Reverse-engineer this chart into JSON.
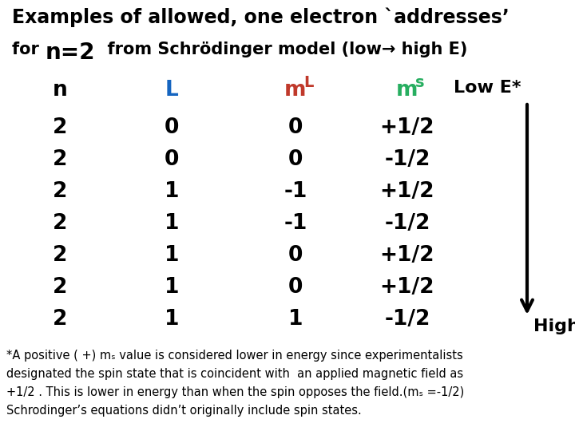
{
  "title_line1": "Examples of allowed, one electron `addresses’",
  "title_line2_a": "for ",
  "title_line2_b": "n=2",
  "title_line2_c": "  from Schrödinger model (low→ high E)",
  "bg_color": "#ffffff",
  "col_colors": [
    "black",
    "#1565C0",
    "#c0392b",
    "#27ae60"
  ],
  "rows": [
    [
      "2",
      "0",
      "0",
      "+1/2"
    ],
    [
      "2",
      "0",
      "0",
      "-1/2"
    ],
    [
      "2",
      "1",
      "-1",
      "+1/2"
    ],
    [
      "2",
      "1",
      "-1",
      "-1/2"
    ],
    [
      "2",
      "1",
      "0",
      "+1/2"
    ],
    [
      "2",
      "1",
      "0",
      "+1/2"
    ],
    [
      "2",
      "1",
      "1",
      "-1/2"
    ]
  ],
  "footnote_lines": [
    "*A positive ( +) mₛ value is considered lower in energy since experimentalists",
    "designated the spin state that is coincident with  an applied magnetic field as",
    "+1/2 . This is lower in energy than when the spin opposes the field.(mₛ =-1/2)",
    "Schrodinger’s equations didn’t originally include spin states."
  ],
  "low_e_label": "Low E*",
  "high_e_label": "High E",
  "arrow_color": "black",
  "title1_fontsize": 17,
  "title2_fontsize": 15,
  "title2b_fontsize": 20,
  "header_fontsize": 19,
  "subscript_fontsize": 14,
  "data_fontsize": 19,
  "label_fontsize": 16,
  "footnote_fontsize": 10.5
}
